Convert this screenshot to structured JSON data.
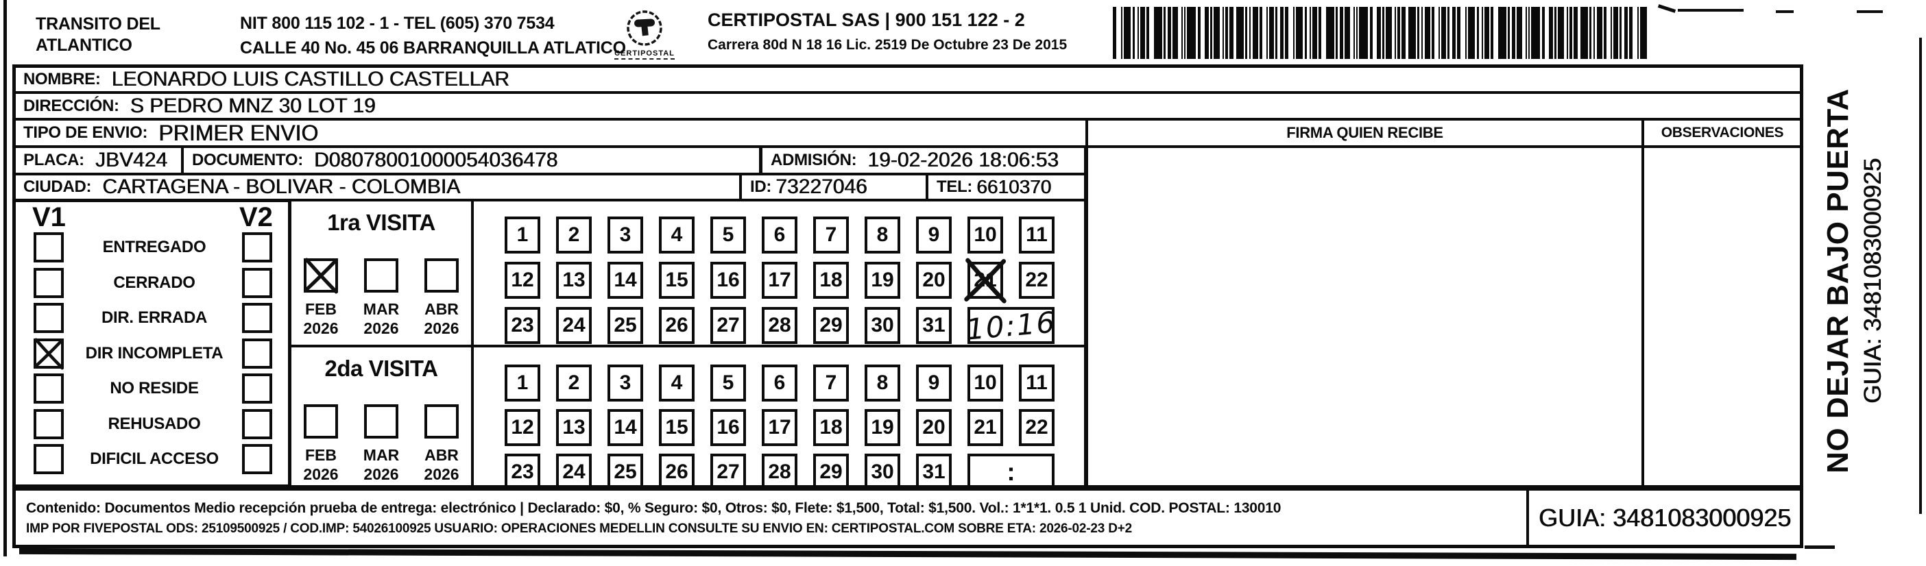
{
  "header": {
    "office_line1": "TRANSITO DEL",
    "office_line2": "ATLANTICO",
    "nit_tel": "NIT 800 115 102 - 1 - TEL (605) 370 7534",
    "address": "CALLE 40 No. 45 06 BARRANQUILLA ATLATICO",
    "logo_text": "CERTIPOSTAL",
    "company": "CERTIPOSTAL SAS | 900 151 122 - 2",
    "company_address": "Carrera 80d N 18 16  Lic. 2519 De Octubre 23 De 2015"
  },
  "recipient": {
    "nombre_label": "NOMBRE:",
    "nombre": "LEONARDO LUIS CASTILLO CASTELLAR",
    "direccion_label": "DIRECCIÓN:",
    "direccion": "S PEDRO MNZ 30 LOT 19",
    "tipo_envio_label": "TIPO DE ENVIO:",
    "tipo_envio": "PRIMER ENVIO",
    "placa_label": "PLACA:",
    "placa": "JBV424",
    "documento_label": "DOCUMENTO:",
    "documento": "D08078001000054036478",
    "admision_label": "ADMISIÓN:",
    "admision": "19-02-2026 18:06:53",
    "ciudad_label": "CIUDAD:",
    "ciudad": "CARTAGENA - BOLIVAR - COLOMBIA",
    "id_label": "ID:",
    "id_value": "73227046",
    "tel_label": "TEL:",
    "tel_value": "6610370"
  },
  "columns": {
    "firma": "FIRMA QUIEN RECIBE",
    "observaciones": "OBSERVACIONES"
  },
  "status": {
    "v1_label": "V1",
    "v2_label": "V2",
    "options": [
      {
        "label": "ENTREGADO",
        "v1": false,
        "v2": false
      },
      {
        "label": "CERRADO",
        "v1": false,
        "v2": false
      },
      {
        "label": "DIR. ERRADA",
        "v1": false,
        "v2": false
      },
      {
        "label": "DIR INCOMPLETA",
        "v1": true,
        "v2": false
      },
      {
        "label": "NO RESIDE",
        "v1": false,
        "v2": false
      },
      {
        "label": "REHUSADO",
        "v1": false,
        "v2": false
      },
      {
        "label": "DIFICIL ACCESO",
        "v1": false,
        "v2": false
      }
    ]
  },
  "visits": [
    {
      "title": "1ra VISITA",
      "months": [
        {
          "label": "FEB",
          "year": "2026",
          "checked": true
        },
        {
          "label": "MAR",
          "year": "2026",
          "checked": false
        },
        {
          "label": "ABR",
          "year": "2026",
          "checked": false
        }
      ],
      "day_rows": [
        [
          1,
          2,
          3,
          4,
          5,
          6,
          7,
          8,
          9,
          10,
          11
        ],
        [
          12,
          13,
          14,
          15,
          16,
          17,
          18,
          19,
          20,
          21,
          22
        ],
        [
          23,
          24,
          25,
          26,
          27,
          28,
          29,
          30,
          31
        ]
      ],
      "marked_days": [
        21
      ],
      "time_value": "10:16",
      "time_handwritten": true
    },
    {
      "title": "2da VISITA",
      "months": [
        {
          "label": "FEB",
          "year": "2026",
          "checked": false
        },
        {
          "label": "MAR",
          "year": "2026",
          "checked": false
        },
        {
          "label": "ABR",
          "year": "2026",
          "checked": false
        }
      ],
      "day_rows": [
        [
          1,
          2,
          3,
          4,
          5,
          6,
          7,
          8,
          9,
          10,
          11
        ],
        [
          12,
          13,
          14,
          15,
          16,
          17,
          18,
          19,
          20,
          21,
          22
        ],
        [
          23,
          24,
          25,
          26,
          27,
          28,
          29,
          30,
          31
        ]
      ],
      "marked_days": [],
      "time_value": ":",
      "time_handwritten": false
    }
  ],
  "footer": {
    "line1": "Contenido: Documentos Medio recepción prueba de entrega: electrónico | Declarado: $0, % Seguro: $0, Otros: $0, Flete: $1,500, Total: $1,500. Vol.: 1*1*1. 0.5 1 Unid. COD. POSTAL: 130010",
    "line2": "IMP POR FIVEPOSTAL ODS: 25109500925 / COD.IMP: 54026100925 USUARIO: OPERACIONES MEDELLIN CONSULTE SU ENVIO EN: CERTIPOSTAL.COM SOBRE ETA: 2026-02-23 D+2",
    "guia": "GUIA: 3481083000925"
  },
  "sidebar": {
    "warning": "NO DEJAR BAJO PUERTA",
    "guia": "GUIA: 3481083000925"
  },
  "colors": {
    "ink": "#0c0c0c",
    "paper": "#ffffff"
  }
}
